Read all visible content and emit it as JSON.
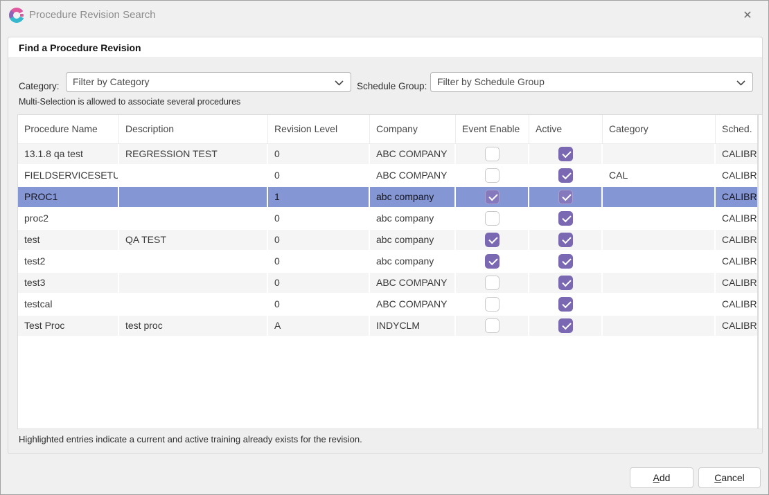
{
  "window": {
    "title": "Procedure Revision Search",
    "close_glyph": "✕"
  },
  "panel": {
    "header": "Find a Procedure Revision"
  },
  "filters": {
    "category_label": "Category:",
    "category_placeholder": "Filter by Category",
    "schedule_group_label": "Schedule Group:",
    "schedule_group_placeholder": "Filter by Schedule Group"
  },
  "hint": "Multi-Selection is allowed to associate several procedures",
  "table": {
    "columns": [
      "Procedure Name",
      "Description",
      "Revision Level",
      "Company",
      "Event Enable",
      "Active",
      "Category",
      "Sched."
    ],
    "rows": [
      {
        "name": "13.1.8 qa test",
        "description": "REGRESSION TEST",
        "revision": "0",
        "company": "ABC COMPANY",
        "event_enable": false,
        "active": true,
        "category": "",
        "sched": "CALIBR",
        "highlighted": false
      },
      {
        "name": "FIELDSERVICESETUP",
        "description": "",
        "revision": "0",
        "company": "ABC COMPANY",
        "event_enable": false,
        "active": true,
        "category": "CAL",
        "sched": "CALIBR",
        "highlighted": false
      },
      {
        "name": "PROC1",
        "description": "",
        "revision": "1",
        "company": "abc company",
        "event_enable": true,
        "active": true,
        "category": "",
        "sched": "CALIBR",
        "highlighted": true
      },
      {
        "name": "proc2",
        "description": "",
        "revision": "0",
        "company": "abc company",
        "event_enable": false,
        "active": true,
        "category": "",
        "sched": "CALIBR",
        "highlighted": false
      },
      {
        "name": "test",
        "description": "QA TEST",
        "revision": "0",
        "company": "abc company",
        "event_enable": true,
        "active": true,
        "category": "",
        "sched": "CALIBR",
        "highlighted": false
      },
      {
        "name": "test2",
        "description": "",
        "revision": "0",
        "company": "abc company",
        "event_enable": true,
        "active": true,
        "category": "",
        "sched": "CALIBR",
        "highlighted": false
      },
      {
        "name": "test3",
        "description": "",
        "revision": "0",
        "company": "ABC COMPANY",
        "event_enable": false,
        "active": true,
        "category": "",
        "sched": "CALIBR",
        "highlighted": false
      },
      {
        "name": "testcal",
        "description": "",
        "revision": "0",
        "company": "ABC COMPANY",
        "event_enable": false,
        "active": true,
        "category": "",
        "sched": "CALIBR",
        "highlighted": false
      },
      {
        "name": "Test Proc",
        "description": "test proc",
        "revision": "A",
        "company": "INDYCLM",
        "event_enable": false,
        "active": true,
        "category": "",
        "sched": "CALIBR",
        "highlighted": false
      }
    ]
  },
  "footnote": "Highlighted entries indicate a current and active training already exists for the revision.",
  "buttons": {
    "add": "Add",
    "cancel": "Cancel"
  },
  "colors": {
    "highlight_row": "#8496d3",
    "checkbox_checked": "#7a68b3",
    "row_stripe": "#f5f5f5",
    "dialog_background": "#f0f0f0",
    "logo_pink": "#df589d",
    "logo_purple": "#8f62ba",
    "logo_teal": "#35b8cd"
  }
}
